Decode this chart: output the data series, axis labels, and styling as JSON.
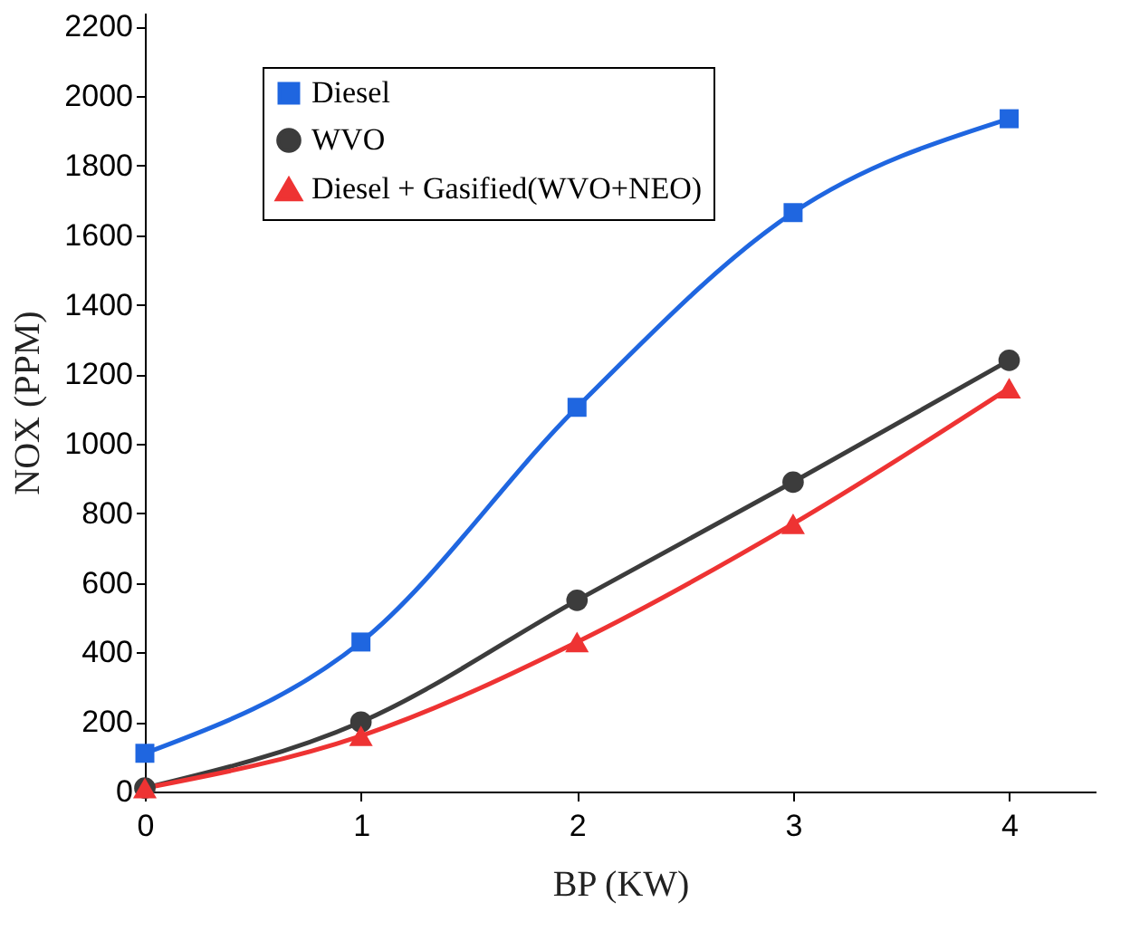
{
  "chart_data": {
    "type": "line",
    "xlabel": "BP (KW)",
    "ylabel": "NOX (PPM)",
    "x": [
      0,
      1,
      2,
      3,
      4
    ],
    "xlim": [
      0,
      4.4
    ],
    "xticks": [
      0,
      1,
      2,
      3,
      4
    ],
    "ylim": [
      0,
      2240
    ],
    "yticks": [
      0,
      200,
      400,
      600,
      800,
      1000,
      1200,
      1400,
      1600,
      1800,
      2000,
      2200
    ],
    "grid": false,
    "legend": "top left",
    "line_style": "solid",
    "series": [
      {
        "name": "Diesel",
        "color": "#1f66e0",
        "marker": "square",
        "values": [
          110,
          430,
          1105,
          1665,
          1935
        ]
      },
      {
        "name": "WVO",
        "color": "#3c3c3c",
        "marker": "circle",
        "values": [
          10,
          200,
          550,
          890,
          1240
        ]
      },
      {
        "name": "Diesel + Gasified(WVO+NEO)",
        "color": "#ee3333",
        "marker": "triangle",
        "values": [
          10,
          160,
          430,
          770,
          1160
        ]
      }
    ]
  }
}
